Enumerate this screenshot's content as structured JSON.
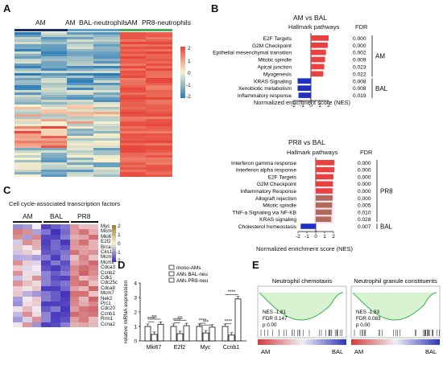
{
  "panels": {
    "A": "A",
    "B": "B",
    "C": "C",
    "D": "D",
    "E": "E"
  },
  "panelA": {
    "group_labels": [
      "AM",
      "AM",
      "BAL-neutrophils",
      "AM",
      "PR8-neutrophils"
    ],
    "legend_ticks": [
      "2",
      "1",
      "0",
      "-1",
      "-2"
    ],
    "colors": {
      "high": "#e8473a",
      "low": "#2b7bb9",
      "mid": "#f7f2cf"
    }
  },
  "panelB_top": {
    "title": "AM vs BAL",
    "subtitle": "Hallmark pathways",
    "fdr_header": "FDR",
    "xlabel": "Normalized enrichment score (NES)",
    "ticks": [
      "-2",
      "-1",
      "0",
      "1",
      "2"
    ],
    "pathways": [
      "E2F Targets",
      "G2M Checkpoint",
      "Epithelial mesenchymal transition",
      "Mitotic spindle",
      "Apical junction",
      "Myogenesis",
      "KRAS Signaling",
      "Xenobiotic metabolism",
      "Inflammatory response"
    ],
    "nes": [
      2.0,
      1.9,
      1.7,
      1.6,
      1.5,
      1.4,
      -1.5,
      -1.5,
      -1.4
    ],
    "fdr": [
      "0.000",
      "0.000",
      "0.002",
      "0.009",
      "0.023",
      "0.022",
      "0.008",
      "0.008",
      "0.019"
    ],
    "group_am": "AM",
    "group_bal": "BAL",
    "pos_color": "#e8413f",
    "neg_color": "#1f2fc4"
  },
  "panelB_bottom": {
    "title": "PR8 vs BAL",
    "subtitle": "Hallmark pathways",
    "fdr_header": "FDR",
    "xlabel": "Normalized enrichment score (NES)",
    "ticks": [
      "-2",
      "-1",
      "0",
      "1",
      "2"
    ],
    "pathways": [
      "Interferon gamma response",
      "Interferon alpha response",
      "E2F Targets",
      "G2M Checkpoint",
      "Inflammatory Response",
      "Allograft rejection",
      "Mitotic spindle",
      "TNF-a Signaling via NF-KB",
      "KRAS signaling",
      "Cholesterol homeostasis"
    ],
    "nes": [
      2.1,
      2.1,
      2.0,
      1.95,
      1.9,
      1.9,
      1.85,
      1.8,
      1.75,
      -1.7
    ],
    "fdr": [
      "0.000",
      "0.000",
      "0.000",
      "0.000",
      "0.000",
      "0.000",
      "0.005",
      "0.010",
      "0.028",
      "0.007"
    ],
    "group_pr8": "PR8",
    "group_bal": "BAL"
  },
  "panelC": {
    "title": "Cell cycle-associated transcription factors",
    "groups": [
      "AM",
      "BAL",
      "PR8"
    ],
    "genes": [
      "Myc",
      "Mcm4",
      "Mki67",
      "E2f2",
      "Brca1",
      "Cks1b",
      "Mcm5",
      "Mcm2",
      "Cdca3",
      "Ccnb2",
      "Cdk1",
      "Cdc25c",
      "Cdca8",
      "Mcm7",
      "Nek2",
      "Prc1",
      "Cdc20",
      "Ccnb1",
      "Rrm1",
      "Ccna2"
    ],
    "legend_ticks": [
      "2",
      "1",
      "0",
      "-1",
      "-2"
    ]
  },
  "panelD": {
    "legend": [
      "mono-AMs",
      "AMs BAL-neu",
      "AMs PR8-neu"
    ],
    "ylabel": "relative mRNA expression",
    "yticks": [
      "0",
      "1",
      "2",
      "3",
      "4"
    ],
    "categories": [
      "Mki67",
      "E2f2",
      "Myc",
      "Ccnb1"
    ],
    "sig_labels": [
      "****",
      "ns",
      "****",
      "ns",
      "****",
      "***",
      "****",
      "****"
    ],
    "chart_data": {
      "type": "bar",
      "categories": [
        "Mki67",
        "E2f2",
        "Myc",
        "Ccnb1"
      ],
      "ylim": [
        0,
        4
      ],
      "ylabel": "relative mRNA expression",
      "series": [
        {
          "name": "mono-AMs",
          "values": [
            1.0,
            1.0,
            1.0,
            1.0
          ]
        },
        {
          "name": "AMs BAL-neu",
          "values": [
            0.45,
            0.5,
            0.55,
            0.4
          ]
        },
        {
          "name": "AMs PR8-neu",
          "values": [
            1.15,
            1.05,
            0.95,
            2.9
          ]
        }
      ]
    }
  },
  "panelE": {
    "plots": [
      {
        "title": "Neutrophil chemotaxis",
        "nes": "NES  -1.81",
        "fdr": "FDR   0.147",
        "p": "p       0.00",
        "left": "AM",
        "right": "BAL"
      },
      {
        "title": "Neutrophil granule constituents",
        "nes": "NES  -1.83",
        "fdr": "FDR   0.083",
        "p": "p       0.00",
        "left": "AM",
        "right": "BAL"
      }
    ]
  }
}
